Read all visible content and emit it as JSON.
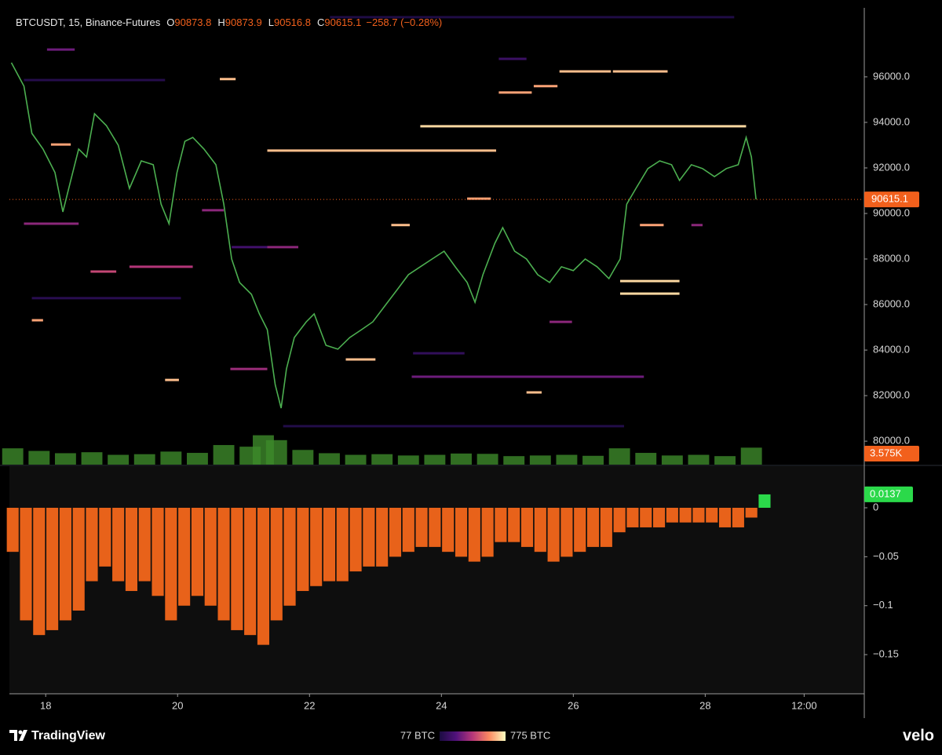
{
  "header": {
    "symbol": "BTCUSDT, 15, Binance-Futures",
    "ohlc": [
      {
        "label": "O",
        "value": "90873.8"
      },
      {
        "label": "H",
        "value": "90873.9"
      },
      {
        "label": "L",
        "value": "90516.8"
      },
      {
        "label": "C",
        "value": "90615.1"
      }
    ],
    "change": "−258.7 (−0.28%)"
  },
  "footer": {
    "brand": "TradingView",
    "watermark": "velo"
  },
  "chart_data": [
    {
      "type": "line",
      "color": "#4caf50",
      "x": [
        17.48,
        17.67,
        17.79,
        17.96,
        18.14,
        18.26,
        18.38,
        18.5,
        18.62,
        18.74,
        18.92,
        19.1,
        19.27,
        19.45,
        19.63,
        19.75,
        19.87,
        19.99,
        20.11,
        20.23,
        20.4,
        20.58,
        20.7,
        20.82,
        20.94,
        21.12,
        21.24,
        21.36,
        21.48,
        21.57,
        21.65,
        21.77,
        21.95,
        22.07,
        22.25,
        22.43,
        22.61,
        22.79,
        22.96,
        23.14,
        23.32,
        23.5,
        23.68,
        23.86,
        24.04,
        24.21,
        24.39,
        24.51,
        24.63,
        24.81,
        24.93,
        25.11,
        25.29,
        25.46,
        25.64,
        25.82,
        26.0,
        26.18,
        26.36,
        26.54,
        26.71,
        26.81,
        26.95,
        27.13,
        27.31,
        27.49,
        27.61,
        27.79,
        27.96,
        28.14,
        28.32,
        28.5,
        28.62,
        28.7,
        28.77
      ],
      "values": [
        96620,
        95590,
        93520,
        92830,
        91800,
        90070,
        91450,
        92830,
        92480,
        94380,
        93860,
        93000,
        91100,
        92310,
        92140,
        90410,
        89550,
        91790,
        93170,
        93340,
        92830,
        92140,
        90410,
        88000,
        86970,
        86450,
        85590,
        84900,
        82480,
        81450,
        83170,
        84550,
        85240,
        85590,
        84210,
        84040,
        84550,
        84900,
        85240,
        85930,
        86620,
        87310,
        87660,
        88000,
        88340,
        87660,
        86970,
        86100,
        87310,
        88690,
        89380,
        88340,
        88000,
        87310,
        86970,
        87660,
        87490,
        88000,
        87660,
        87140,
        88000,
        90410,
        91100,
        91970,
        92310,
        92140,
        91450,
        92140,
        91970,
        91620,
        91970,
        92140,
        93340,
        92480,
        90615.1
      ],
      "last_price": 90615.1,
      "last_color": "#f2601c",
      "xlim": [
        17.45,
        30.4
      ],
      "xticks": [
        18,
        20,
        22,
        24,
        26,
        28,
        {
          "value": 29.5,
          "label": "12:00"
        }
      ],
      "ylim": [
        78970,
        99030
      ],
      "yticks": [
        {
          "value": 80000,
          "label": "80000.0"
        },
        {
          "value": 82000,
          "label": "82000.0"
        },
        {
          "value": 84000,
          "label": "84000.0"
        },
        {
          "value": 86000,
          "label": "86000.0"
        },
        {
          "value": 88000,
          "label": "88000.0"
        },
        {
          "value": 90000,
          "label": "90000.0"
        },
        {
          "value": 92000,
          "label": "92000.0"
        },
        {
          "value": 94000,
          "label": "94000.0"
        },
        {
          "value": 96000,
          "label": "96000.0"
        }
      ],
      "y2lim": [
        0,
        140000
      ],
      "volume": {
        "axis": "y2",
        "color": "#3d8a2a",
        "x": [
          17.5,
          17.9,
          18.3,
          18.7,
          19.1,
          19.5,
          19.9,
          20.3,
          20.7,
          21.1,
          21.3,
          21.5,
          21.9,
          22.3,
          22.7,
          23.1,
          23.5,
          23.9,
          24.3,
          24.7,
          25.1,
          25.5,
          25.9,
          26.3,
          26.7,
          27.1,
          27.5,
          27.9,
          28.3,
          28.7
        ],
        "values": [
          5000,
          4200,
          3500,
          3800,
          3000,
          3200,
          4000,
          3600,
          6000,
          5500,
          9000,
          7500,
          4500,
          3500,
          3000,
          3200,
          2800,
          3000,
          3400,
          3300,
          2600,
          2800,
          3000,
          2700,
          5000,
          3600,
          2800,
          3000,
          2600,
          5200
        ],
        "last": {
          "value": 3575,
          "label": "3.575K"
        }
      },
      "colorbar": {
        "ticks": [
          {
            "value": 77,
            "label": "77 BTC"
          },
          {
            "value": 775,
            "label": "775 BTC"
          }
        ],
        "colors": [
          "#1b0c41",
          "#51127c",
          "#b73779",
          "#fc8961",
          "#fcfdbf"
        ]
      },
      "levels": [
        {
          "price": 93830,
          "x": [
            23.68,
            28.62
          ],
          "size": 720
        },
        {
          "price": 92760,
          "x": [
            21.36,
            24.83
          ],
          "size": 680
        },
        {
          "price": 95310,
          "x": [
            24.87,
            25.37
          ],
          "size": 640
        },
        {
          "price": 95590,
          "x": [
            25.4,
            25.76
          ],
          "size": 640
        },
        {
          "price": 96240,
          "x": [
            25.79,
            26.57
          ],
          "size": 680
        },
        {
          "price": 96240,
          "x": [
            26.6,
            27.43
          ],
          "size": 680
        },
        {
          "price": 87030,
          "x": [
            26.71,
            27.61
          ],
          "size": 720
        },
        {
          "price": 86480,
          "x": [
            26.71,
            27.61
          ],
          "size": 720
        },
        {
          "price": 82830,
          "x": [
            23.55,
            27.07
          ],
          "size": 300
        },
        {
          "price": 87660,
          "x": [
            19.27,
            20.23
          ],
          "size": 420
        },
        {
          "price": 90140,
          "x": [
            20.37,
            20.7
          ],
          "size": 350
        },
        {
          "price": 87450,
          "x": [
            18.68,
            19.07
          ],
          "size": 460
        },
        {
          "price": 83170,
          "x": [
            20.8,
            21.36
          ],
          "size": 380
        },
        {
          "price": 97200,
          "x": [
            18.02,
            18.44
          ],
          "size": 300
        },
        {
          "price": 83590,
          "x": [
            22.55,
            23.0
          ],
          "size": 680
        },
        {
          "price": 90650,
          "x": [
            24.39,
            24.75
          ],
          "size": 640
        },
        {
          "price": 82690,
          "x": [
            19.81,
            20.02
          ],
          "size": 680
        },
        {
          "price": 82140,
          "x": [
            25.29,
            25.52
          ],
          "size": 680
        },
        {
          "price": 95860,
          "x": [
            17.67,
            19.81
          ],
          "size": 110
        },
        {
          "price": 86280,
          "x": [
            17.79,
            20.05
          ],
          "size": 120
        },
        {
          "price": 80660,
          "x": [
            21.6,
            26.77
          ],
          "size": 100
        },
        {
          "price": 83860,
          "x": [
            23.57,
            24.35
          ],
          "size": 150
        },
        {
          "price": 85240,
          "x": [
            25.64,
            25.98
          ],
          "size": 350
        },
        {
          "price": 96790,
          "x": [
            24.87,
            25.29
          ],
          "size": 180
        },
        {
          "price": 89490,
          "x": [
            27.01,
            27.37
          ],
          "size": 640
        },
        {
          "price": 89490,
          "x": [
            27.79,
            27.96
          ],
          "size": 350
        },
        {
          "price": 89490,
          "x": [
            23.24,
            23.52
          ],
          "size": 680
        },
        {
          "price": 85310,
          "x": [
            17.79,
            17.96
          ],
          "size": 640
        },
        {
          "price": 95900,
          "x": [
            20.64,
            20.88
          ],
          "size": 680
        },
        {
          "price": 88520,
          "x": [
            20.82,
            21.36
          ],
          "size": 200
        },
        {
          "price": 88520,
          "x": [
            21.36,
            21.83
          ],
          "size": 350
        },
        {
          "price": 93030,
          "x": [
            18.08,
            18.38
          ],
          "size": 640
        },
        {
          "price": 89550,
          "x": [
            17.67,
            18.5
          ],
          "size": 350
        },
        {
          "price": 98620,
          "x": [
            22.31,
            28.44
          ],
          "size": 90
        }
      ]
    },
    {
      "type": "bar",
      "color": "#e8621a",
      "up_color": "#2bd94a",
      "x": [
        17.5,
        17.7,
        17.9,
        18.1,
        18.3,
        18.5,
        18.7,
        18.9,
        19.1,
        19.3,
        19.5,
        19.7,
        19.9,
        20.1,
        20.3,
        20.5,
        20.7,
        20.9,
        21.1,
        21.3,
        21.5,
        21.7,
        21.9,
        22.1,
        22.3,
        22.5,
        22.7,
        22.9,
        23.1,
        23.3,
        23.5,
        23.7,
        23.9,
        24.1,
        24.3,
        24.5,
        24.7,
        24.9,
        25.1,
        25.3,
        25.5,
        25.7,
        25.9,
        26.1,
        26.3,
        26.5,
        26.7,
        26.9,
        27.1,
        27.3,
        27.5,
        27.7,
        27.9,
        28.1,
        28.3,
        28.5,
        28.7,
        28.9
      ],
      "values": [
        -0.045,
        -0.115,
        -0.13,
        -0.125,
        -0.115,
        -0.105,
        -0.075,
        -0.06,
        -0.075,
        -0.085,
        -0.075,
        -0.09,
        -0.115,
        -0.1,
        -0.09,
        -0.1,
        -0.115,
        -0.125,
        -0.13,
        -0.14,
        -0.115,
        -0.1,
        -0.085,
        -0.08,
        -0.075,
        -0.075,
        -0.065,
        -0.06,
        -0.06,
        -0.05,
        -0.045,
        -0.04,
        -0.04,
        -0.045,
        -0.05,
        -0.055,
        -0.05,
        -0.035,
        -0.035,
        -0.04,
        -0.045,
        -0.055,
        -0.05,
        -0.045,
        -0.04,
        -0.04,
        -0.025,
        -0.02,
        -0.02,
        -0.02,
        -0.015,
        -0.015,
        -0.015,
        -0.015,
        -0.02,
        -0.02,
        -0.01,
        0.0137
      ],
      "last_value": 0.0137,
      "xlim": [
        17.45,
        30.4
      ],
      "ylim": [
        -0.19,
        0.0425
      ],
      "yticks": [
        0,
        {
          "value": -0.05,
          "label": "−0.05"
        },
        {
          "value": -0.1,
          "label": "−0.1"
        },
        {
          "value": -0.15,
          "label": "−0.15"
        }
      ]
    }
  ]
}
